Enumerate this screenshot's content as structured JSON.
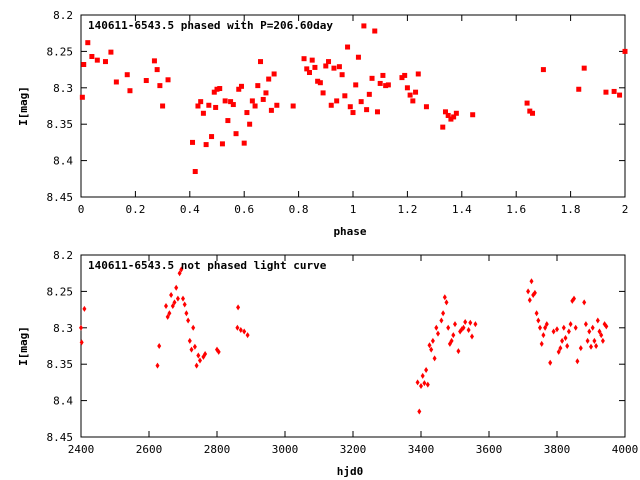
{
  "chart_data": [
    {
      "type": "scatter",
      "title": "140611-6543.5 phased with P=206.60day",
      "xlabel": "phase",
      "ylabel": "I[mag]",
      "xlim": [
        0,
        2
      ],
      "ylim": [
        8.2,
        8.45
      ],
      "y_inverted": true,
      "grid": false,
      "marker_color": "#ff0000",
      "x_ticks": [
        "0",
        "0.2",
        "0.4",
        "0.6",
        "0.8",
        "1",
        "1.2",
        "1.4",
        "1.6",
        "1.8",
        "2"
      ],
      "y_ticks": [
        "8.2",
        "8.25",
        "8.3",
        "8.35",
        "8.4",
        "8.45"
      ],
      "x_tick_values": [
        0,
        0.2,
        0.4,
        0.6,
        0.8,
        1.0,
        1.2,
        1.4,
        1.6,
        1.8,
        2.0
      ],
      "y_tick_values": [
        8.2,
        8.25,
        8.3,
        8.35,
        8.4,
        8.45
      ],
      "x": [
        0.005,
        0.01,
        0.025,
        0.04,
        0.06,
        0.09,
        0.11,
        0.13,
        0.17,
        0.18,
        0.24,
        0.27,
        0.28,
        0.29,
        0.3,
        0.32,
        0.41,
        0.42,
        0.43,
        0.44,
        0.45,
        0.46,
        0.47,
        0.48,
        0.49,
        0.495,
        0.5,
        0.51,
        0.52,
        0.53,
        0.54,
        0.55,
        0.56,
        0.57,
        0.58,
        0.59,
        0.6,
        0.61,
        0.62,
        0.63,
        0.64,
        0.65,
        0.66,
        0.67,
        0.68,
        0.69,
        0.7,
        0.71,
        0.72,
        0.78,
        0.82,
        0.83,
        0.84,
        0.85,
        0.86,
        0.87,
        0.88,
        0.89,
        0.9,
        0.91,
        0.92,
        0.93,
        0.94,
        0.95,
        0.96,
        0.97,
        0.98,
        0.99,
        1.0,
        1.01,
        1.02,
        1.03,
        1.04,
        1.05,
        1.06,
        1.07,
        1.08,
        1.09,
        1.1,
        1.11,
        1.12,
        1.13,
        1.18,
        1.19,
        1.2,
        1.21,
        1.22,
        1.23,
        1.24,
        1.27,
        1.33,
        1.34,
        1.35,
        1.36,
        1.37,
        1.38,
        1.44,
        1.64,
        1.65,
        1.66,
        1.7,
        1.83,
        1.85,
        1.93,
        1.96,
        1.98,
        2.0
      ],
      "y": [
        8.313,
        8.268,
        8.238,
        8.257,
        8.262,
        8.264,
        8.251,
        8.292,
        8.282,
        8.304,
        8.29,
        8.263,
        8.275,
        8.297,
        8.325,
        8.289,
        8.375,
        8.415,
        8.325,
        8.319,
        8.335,
        8.378,
        8.324,
        8.367,
        8.306,
        8.327,
        8.302,
        8.301,
        8.377,
        8.318,
        8.345,
        8.319,
        8.323,
        8.363,
        8.302,
        8.298,
        8.376,
        8.334,
        8.35,
        8.318,
        8.325,
        8.297,
        8.264,
        8.316,
        8.307,
        8.288,
        8.331,
        8.281,
        8.324,
        8.325,
        8.26,
        8.274,
        8.279,
        8.262,
        8.272,
        8.291,
        8.293,
        8.307,
        8.27,
        8.264,
        8.324,
        8.273,
        8.318,
        8.271,
        8.282,
        8.311,
        8.244,
        8.326,
        8.334,
        8.296,
        8.258,
        8.319,
        8.215,
        8.33,
        8.309,
        8.287,
        8.222,
        8.333,
        8.294,
        8.283,
        8.297,
        8.296,
        8.286,
        8.283,
        8.3,
        8.31,
        8.318,
        8.306,
        8.281,
        8.326,
        8.354,
        8.333,
        8.338,
        8.343,
        8.34,
        8.335,
        8.337,
        8.321,
        8.332,
        8.335,
        8.275,
        8.302,
        8.273,
        8.306,
        8.305,
        8.31,
        8.25
      ]
    },
    {
      "type": "scatter",
      "title": "140611-6543.5 not phased light curve",
      "xlabel": "hjd0",
      "ylabel": "I[mag]",
      "xlim": [
        2400,
        4000
      ],
      "ylim": [
        8.2,
        8.45
      ],
      "y_inverted": true,
      "grid": false,
      "marker_color": "#ff0000",
      "x_ticks": [
        "2400",
        "2600",
        "2800",
        "3000",
        "3200",
        "3400",
        "3600",
        "3800",
        "4000"
      ],
      "y_ticks": [
        "8.2",
        "8.25",
        "8.3",
        "8.35",
        "8.4",
        "8.45"
      ],
      "x_tick_values": [
        2400,
        2600,
        2800,
        3000,
        3200,
        3400,
        3600,
        3800,
        4000
      ],
      "y_tick_values": [
        8.2,
        8.25,
        8.3,
        8.35,
        8.4,
        8.45
      ],
      "x": [
        2400,
        2402,
        2410,
        2625,
        2630,
        2650,
        2655,
        2660,
        2665,
        2670,
        2675,
        2680,
        2685,
        2690,
        2695,
        2700,
        2705,
        2710,
        2715,
        2720,
        2725,
        2730,
        2735,
        2740,
        2745,
        2750,
        2760,
        2765,
        2800,
        2805,
        2860,
        2862,
        2870,
        2880,
        2890,
        3390,
        3395,
        3400,
        3405,
        3410,
        3415,
        3420,
        3425,
        3430,
        3435,
        3440,
        3445,
        3450,
        3460,
        3465,
        3470,
        3475,
        3480,
        3485,
        3490,
        3495,
        3500,
        3510,
        3515,
        3520,
        3525,
        3530,
        3540,
        3545,
        3550,
        3560,
        3715,
        3720,
        3725,
        3730,
        3735,
        3740,
        3745,
        3750,
        3755,
        3760,
        3765,
        3770,
        3780,
        3790,
        3800,
        3805,
        3810,
        3815,
        3820,
        3825,
        3830,
        3835,
        3840,
        3845,
        3850,
        3855,
        3860,
        3870,
        3880,
        3885,
        3890,
        3895,
        3900,
        3905,
        3910,
        3915,
        3920,
        3925,
        3930,
        3935,
        3940,
        3945
      ],
      "y": [
        8.3,
        8.32,
        8.274,
        8.352,
        8.325,
        8.27,
        8.285,
        8.28,
        8.255,
        8.27,
        8.265,
        8.245,
        8.26,
        8.225,
        8.22,
        8.26,
        8.268,
        8.28,
        8.29,
        8.318,
        8.33,
        8.3,
        8.326,
        8.352,
        8.338,
        8.345,
        8.34,
        8.336,
        8.33,
        8.333,
        8.3,
        8.272,
        8.303,
        8.305,
        8.31,
        8.375,
        8.415,
        8.38,
        8.366,
        8.376,
        8.358,
        8.378,
        8.324,
        8.33,
        8.318,
        8.342,
        8.3,
        8.308,
        8.29,
        8.28,
        8.258,
        8.265,
        8.3,
        8.322,
        8.318,
        8.31,
        8.295,
        8.332,
        8.305,
        8.302,
        8.3,
        8.292,
        8.303,
        8.293,
        8.312,
        8.295,
        8.25,
        8.262,
        8.236,
        8.255,
        8.252,
        8.28,
        8.29,
        8.3,
        8.322,
        8.31,
        8.3,
        8.295,
        8.348,
        8.305,
        8.302,
        8.333,
        8.328,
        8.318,
        8.3,
        8.314,
        8.325,
        8.305,
        8.295,
        8.263,
        8.26,
        8.3,
        8.346,
        8.328,
        8.265,
        8.295,
        8.318,
        8.305,
        8.326,
        8.3,
        8.318,
        8.325,
        8.29,
        8.305,
        8.31,
        8.318,
        8.295,
        8.298
      ]
    }
  ]
}
